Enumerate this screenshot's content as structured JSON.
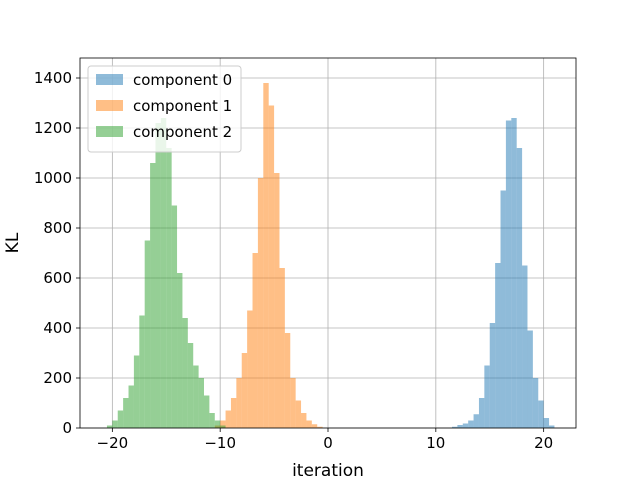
{
  "chart_data": {
    "type": "histogram",
    "title": "",
    "xlabel": "iteration",
    "ylabel": "KL",
    "xlim": [
      -23,
      23
    ],
    "ylim": [
      0,
      1480
    ],
    "xticks": [
      -20,
      -10,
      0,
      10,
      20
    ],
    "yticks": [
      0,
      200,
      400,
      600,
      800,
      1000,
      1200,
      1400
    ],
    "grid": true,
    "legend_position": "top-left",
    "bin_width": 0.5,
    "series": [
      {
        "name": "component 0",
        "color": "#1f77b4",
        "opacity": 0.5,
        "bins": [
          [
            11.5,
            5
          ],
          [
            12.0,
            12
          ],
          [
            12.5,
            18
          ],
          [
            13.0,
            30
          ],
          [
            13.5,
            55
          ],
          [
            14.0,
            120
          ],
          [
            14.5,
            250
          ],
          [
            15.0,
            420
          ],
          [
            15.5,
            660
          ],
          [
            16.0,
            950
          ],
          [
            16.5,
            1230
          ],
          [
            17.0,
            1240
          ],
          [
            17.5,
            1120
          ],
          [
            18.0,
            650
          ],
          [
            18.5,
            390
          ],
          [
            19.0,
            200
          ],
          [
            19.5,
            110
          ],
          [
            20.0,
            40
          ],
          [
            20.5,
            10
          ]
        ]
      },
      {
        "name": "component 1",
        "color": "#ff7f0e",
        "opacity": 0.5,
        "bins": [
          [
            -10.5,
            10
          ],
          [
            -10.0,
            30
          ],
          [
            -9.5,
            70
          ],
          [
            -9.0,
            120
          ],
          [
            -8.5,
            200
          ],
          [
            -8.0,
            300
          ],
          [
            -7.5,
            470
          ],
          [
            -7.0,
            700
          ],
          [
            -6.5,
            1000
          ],
          [
            -6.0,
            1380
          ],
          [
            -5.5,
            1290
          ],
          [
            -5.0,
            1020
          ],
          [
            -4.5,
            640
          ],
          [
            -4.0,
            380
          ],
          [
            -3.5,
            200
          ],
          [
            -3.0,
            110
          ],
          [
            -2.5,
            60
          ],
          [
            -2.0,
            30
          ],
          [
            -1.5,
            15
          ],
          [
            -1.0,
            5
          ]
        ]
      },
      {
        "name": "component 2",
        "color": "#2ca02c",
        "opacity": 0.5,
        "bins": [
          [
            -20.5,
            10
          ],
          [
            -20.0,
            30
          ],
          [
            -19.5,
            70
          ],
          [
            -19.0,
            120
          ],
          [
            -18.5,
            170
          ],
          [
            -18.0,
            290
          ],
          [
            -17.5,
            450
          ],
          [
            -17.0,
            750
          ],
          [
            -16.5,
            1060
          ],
          [
            -16.0,
            1220
          ],
          [
            -15.5,
            1240
          ],
          [
            -15.0,
            1120
          ],
          [
            -14.5,
            890
          ],
          [
            -14.0,
            620
          ],
          [
            -13.5,
            440
          ],
          [
            -13.0,
            340
          ],
          [
            -12.5,
            250
          ],
          [
            -12.0,
            200
          ],
          [
            -11.5,
            130
          ],
          [
            -11.0,
            60
          ],
          [
            -10.5,
            30
          ],
          [
            -10.0,
            10
          ]
        ]
      }
    ]
  }
}
